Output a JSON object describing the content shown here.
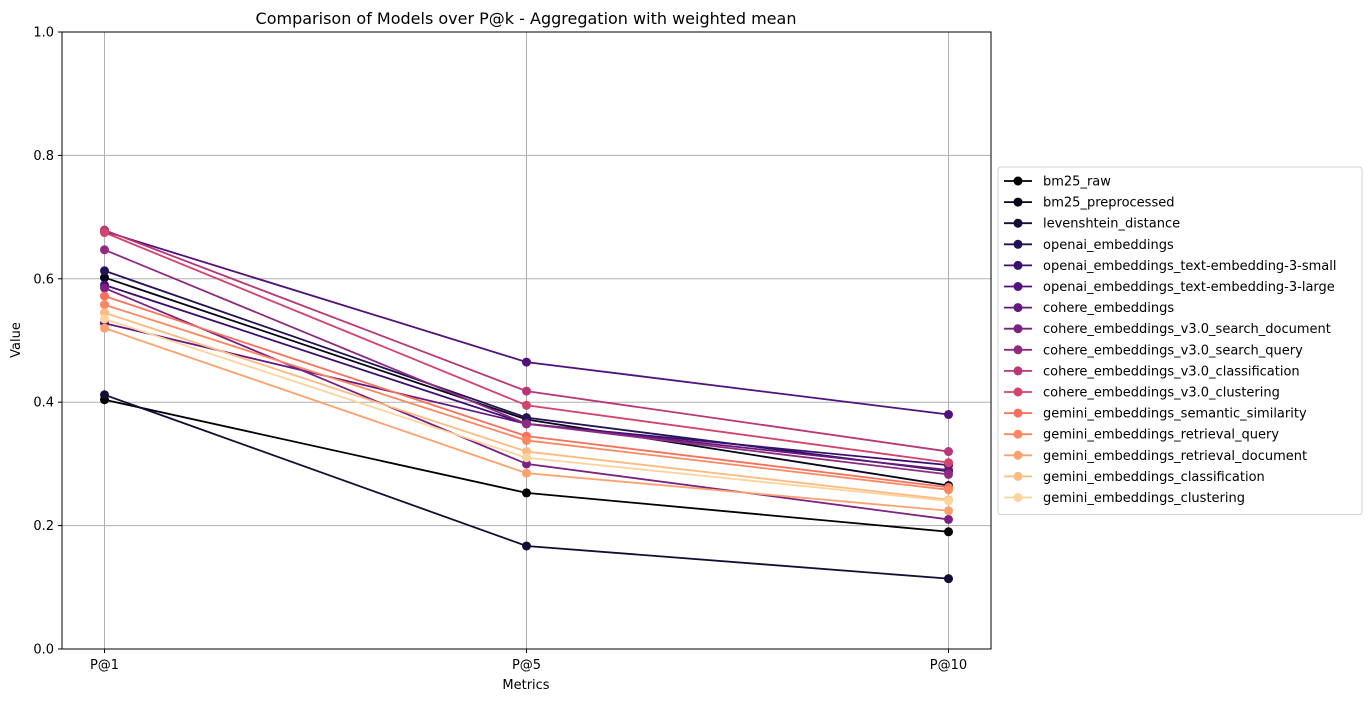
{
  "chart_data": {
    "type": "line",
    "title": "Comparison of Models over P@k - Aggregation with weighted mean",
    "xlabel": "Metrics",
    "ylabel": "Value",
    "categories": [
      "P@1",
      "P@5",
      "P@10"
    ],
    "ylim": [
      0,
      1
    ],
    "yticks": [
      "0.0",
      "0.2",
      "0.4",
      "0.6",
      "0.8",
      "1.0"
    ],
    "grid": true,
    "legend_position": "center-right",
    "series": [
      {
        "name": "bm25_raw",
        "color": "#000004",
        "values": [
          0.404,
          0.253,
          0.19
        ]
      },
      {
        "name": "bm25_preprocessed",
        "color": "#06051a",
        "values": [
          0.602,
          0.372,
          0.265
        ]
      },
      {
        "name": "levenshtein_distance",
        "color": "#140e36",
        "values": [
          0.412,
          0.167,
          0.114
        ]
      },
      {
        "name": "openai_embeddings",
        "color": "#251255",
        "values": [
          0.613,
          0.375,
          0.288
        ]
      },
      {
        "name": "openai_embeddings_text-embedding-3-small",
        "color": "#3b0f70",
        "values": [
          0.59,
          0.365,
          0.298
        ]
      },
      {
        "name": "openai_embeddings_text-embedding-3-large",
        "color": "#51127c",
        "values": [
          0.677,
          0.465,
          0.38
        ]
      },
      {
        "name": "cohere_embeddings",
        "color": "#65197f",
        "values": [
          0.528,
          0.365,
          0.29
        ]
      },
      {
        "name": "cohere_embeddings_v3.0_search_document",
        "color": "#7a2181",
        "values": [
          0.585,
          0.3,
          0.21
        ]
      },
      {
        "name": "cohere_embeddings_v3.0_search_query",
        "color": "#8f2a81",
        "values": [
          0.647,
          0.365,
          0.283
        ]
      },
      {
        "name": "cohere_embeddings_v3.0_classification",
        "color": "#b73779",
        "values": [
          0.679,
          0.418,
          0.32
        ]
      },
      {
        "name": "cohere_embeddings_v3.0_clustering",
        "color": "#d3436e",
        "values": [
          0.675,
          0.395,
          0.302
        ]
      },
      {
        "name": "gemini_embeddings_semantic_similarity",
        "color": "#f7705c",
        "values": [
          0.572,
          0.345,
          0.262
        ]
      },
      {
        "name": "gemini_embeddings_retrieval_query",
        "color": "#fb8861",
        "values": [
          0.558,
          0.338,
          0.258
        ]
      },
      {
        "name": "gemini_embeddings_retrieval_document",
        "color": "#fea16e",
        "values": [
          0.52,
          0.285,
          0.224
        ]
      },
      {
        "name": "gemini_embeddings_classification",
        "color": "#febb81",
        "values": [
          0.545,
          0.32,
          0.242
        ]
      },
      {
        "name": "gemini_embeddings_clustering",
        "color": "#fdd49e",
        "values": [
          0.535,
          0.31,
          0.24
        ]
      }
    ]
  }
}
